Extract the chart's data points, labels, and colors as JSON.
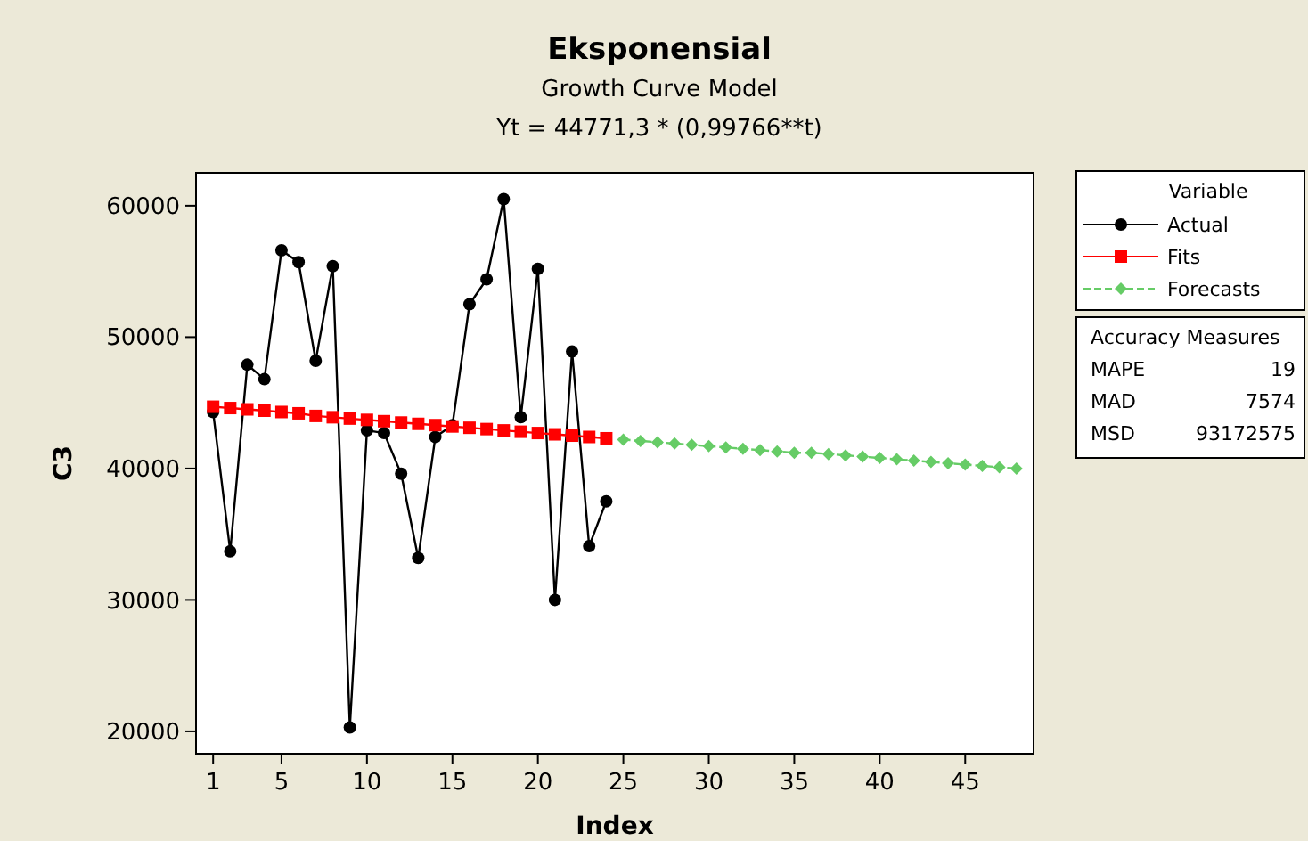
{
  "chart_data": {
    "type": "line",
    "title": "Eksponensial",
    "subtitle": "Growth Curve Model\nYt = 44771,3 * (0,99766**t)",
    "xlabel": "Index",
    "ylabel": "C3",
    "legend_title": "Variable",
    "legend": "right",
    "xlim": [
      0,
      49
    ],
    "xticks": [
      1,
      5,
      10,
      15,
      20,
      25,
      30,
      35,
      40,
      45
    ],
    "ylim": [
      18300,
      62500
    ],
    "yticks": [
      20000,
      30000,
      40000,
      50000,
      60000
    ],
    "grid": false,
    "series": [
      {
        "name": "Actual",
        "color": "#000000",
        "marker": "circle",
        "line_style": "solid",
        "x": [
          1,
          2,
          3,
          4,
          5,
          6,
          7,
          8,
          9,
          10,
          11,
          12,
          13,
          14,
          15,
          16,
          17,
          18,
          19,
          20,
          21,
          22,
          23,
          24
        ],
        "values": [
          44300,
          33700,
          47900,
          46800,
          56600,
          55700,
          48200,
          55400,
          20300,
          42900,
          42700,
          39600,
          33200,
          42400,
          43300,
          52500,
          54400,
          60500,
          43900,
          55200,
          30000,
          48900,
          34100,
          37500
        ]
      },
      {
        "name": "Fits",
        "color": "#ff0000",
        "marker": "square",
        "line_style": "solid",
        "x": [
          1,
          2,
          3,
          4,
          5,
          6,
          7,
          8,
          9,
          10,
          11,
          12,
          13,
          14,
          15,
          16,
          17,
          18,
          19,
          20,
          21,
          22,
          23,
          24
        ],
        "values": [
          44700,
          44600,
          44500,
          44400,
          44300,
          44200,
          44000,
          43900,
          43800,
          43700,
          43600,
          43500,
          43400,
          43300,
          43200,
          43100,
          43000,
          42900,
          42800,
          42700,
          42600,
          42500,
          42400,
          42300
        ]
      },
      {
        "name": "Forecasts",
        "color": "#66cc66",
        "marker": "diamond",
        "line_style": "dashed",
        "x": [
          25,
          26,
          27,
          28,
          29,
          30,
          31,
          32,
          33,
          34,
          35,
          36,
          37,
          38,
          39,
          40,
          41,
          42,
          43,
          44,
          45,
          46,
          47,
          48
        ],
        "values": [
          42200,
          42100,
          42000,
          41900,
          41800,
          41700,
          41600,
          41500,
          41400,
          41300,
          41200,
          41200,
          41100,
          41000,
          40900,
          40800,
          40700,
          40600,
          40500,
          40400,
          40300,
          40200,
          40100,
          40000
        ]
      }
    ],
    "annotations": [
      "Accuracy Measures",
      "MAPE",
      "19",
      "MAD",
      "7574",
      "MSD",
      "93172575"
    ]
  }
}
